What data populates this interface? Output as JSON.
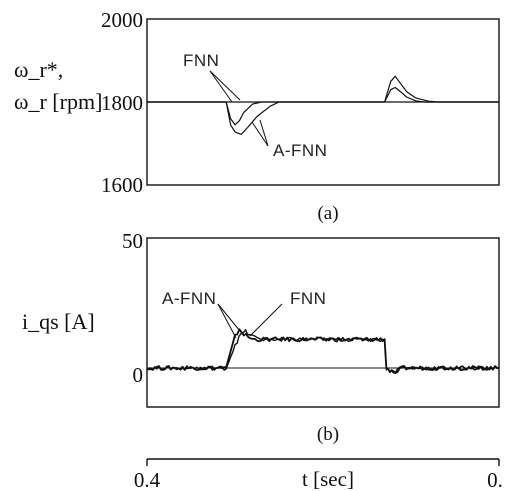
{
  "chart_data": [
    {
      "type": "line",
      "panel_label": "(a)",
      "ylabel_lines": [
        "ω_r*,",
        "ω_r [rpm]"
      ],
      "ylim": [
        1600,
        2000
      ],
      "yticks": [
        "2000",
        "1800",
        "1600"
      ],
      "xlim": [
        0.4,
        0.0
      ],
      "annotations": [
        "FNN",
        "A-FNN"
      ],
      "series": [
        {
          "name": "ω_r*",
          "x": [
            0.4,
            0.0
          ],
          "y": [
            1800,
            1800
          ]
        },
        {
          "name": "FNN",
          "x": [
            0.4,
            0.31,
            0.305,
            0.3,
            0.295,
            0.29,
            0.28,
            0.27,
            0.13,
            0.123,
            0.118,
            0.112,
            0.105,
            0.095,
            0.085,
            0.0
          ],
          "y": [
            1800,
            1800,
            1760,
            1745,
            1755,
            1775,
            1795,
            1800,
            1800,
            1830,
            1835,
            1825,
            1812,
            1803,
            1800,
            1800
          ]
        },
        {
          "name": "A-FNN",
          "x": [
            0.4,
            0.31,
            0.305,
            0.3,
            0.293,
            0.285,
            0.275,
            0.26,
            0.25,
            0.13,
            0.123,
            0.118,
            0.112,
            0.105,
            0.095,
            0.08,
            0.07,
            0.0
          ],
          "y": [
            1800,
            1800,
            1745,
            1728,
            1722,
            1740,
            1765,
            1790,
            1800,
            1800,
            1850,
            1862,
            1845,
            1825,
            1810,
            1802,
            1800,
            1800
          ]
        }
      ]
    },
    {
      "type": "line",
      "panel_label": "(b)",
      "ylabel": "i_qs [A]",
      "ylim": [
        -15,
        50
      ],
      "yticks": [
        "50",
        "0"
      ],
      "xlim": [
        0.4,
        0.0
      ],
      "annotations": [
        "A-FNN",
        "FNN"
      ],
      "series": [
        {
          "name": "A-FNN",
          "x": [
            0.4,
            0.31,
            0.3,
            0.295,
            0.29,
            0.285,
            0.28,
            0.27,
            0.13,
            0.128,
            0.12,
            0.11,
            0.0
          ],
          "y": [
            0,
            0,
            12,
            15,
            13,
            12,
            11,
            11,
            11,
            0,
            -2,
            0,
            0
          ]
        },
        {
          "name": "FNN",
          "x": [
            0.4,
            0.31,
            0.3,
            0.293,
            0.288,
            0.282,
            0.275,
            0.265,
            0.13,
            0.128,
            0.12,
            0.11,
            0.0
          ],
          "y": [
            0,
            0,
            9,
            13,
            14,
            12.5,
            11.5,
            11,
            11,
            0,
            -2,
            0,
            0
          ]
        }
      ]
    }
  ],
  "x_axis": {
    "label": "t [sec]",
    "tick_left": "0.4",
    "tick_right": "0."
  }
}
